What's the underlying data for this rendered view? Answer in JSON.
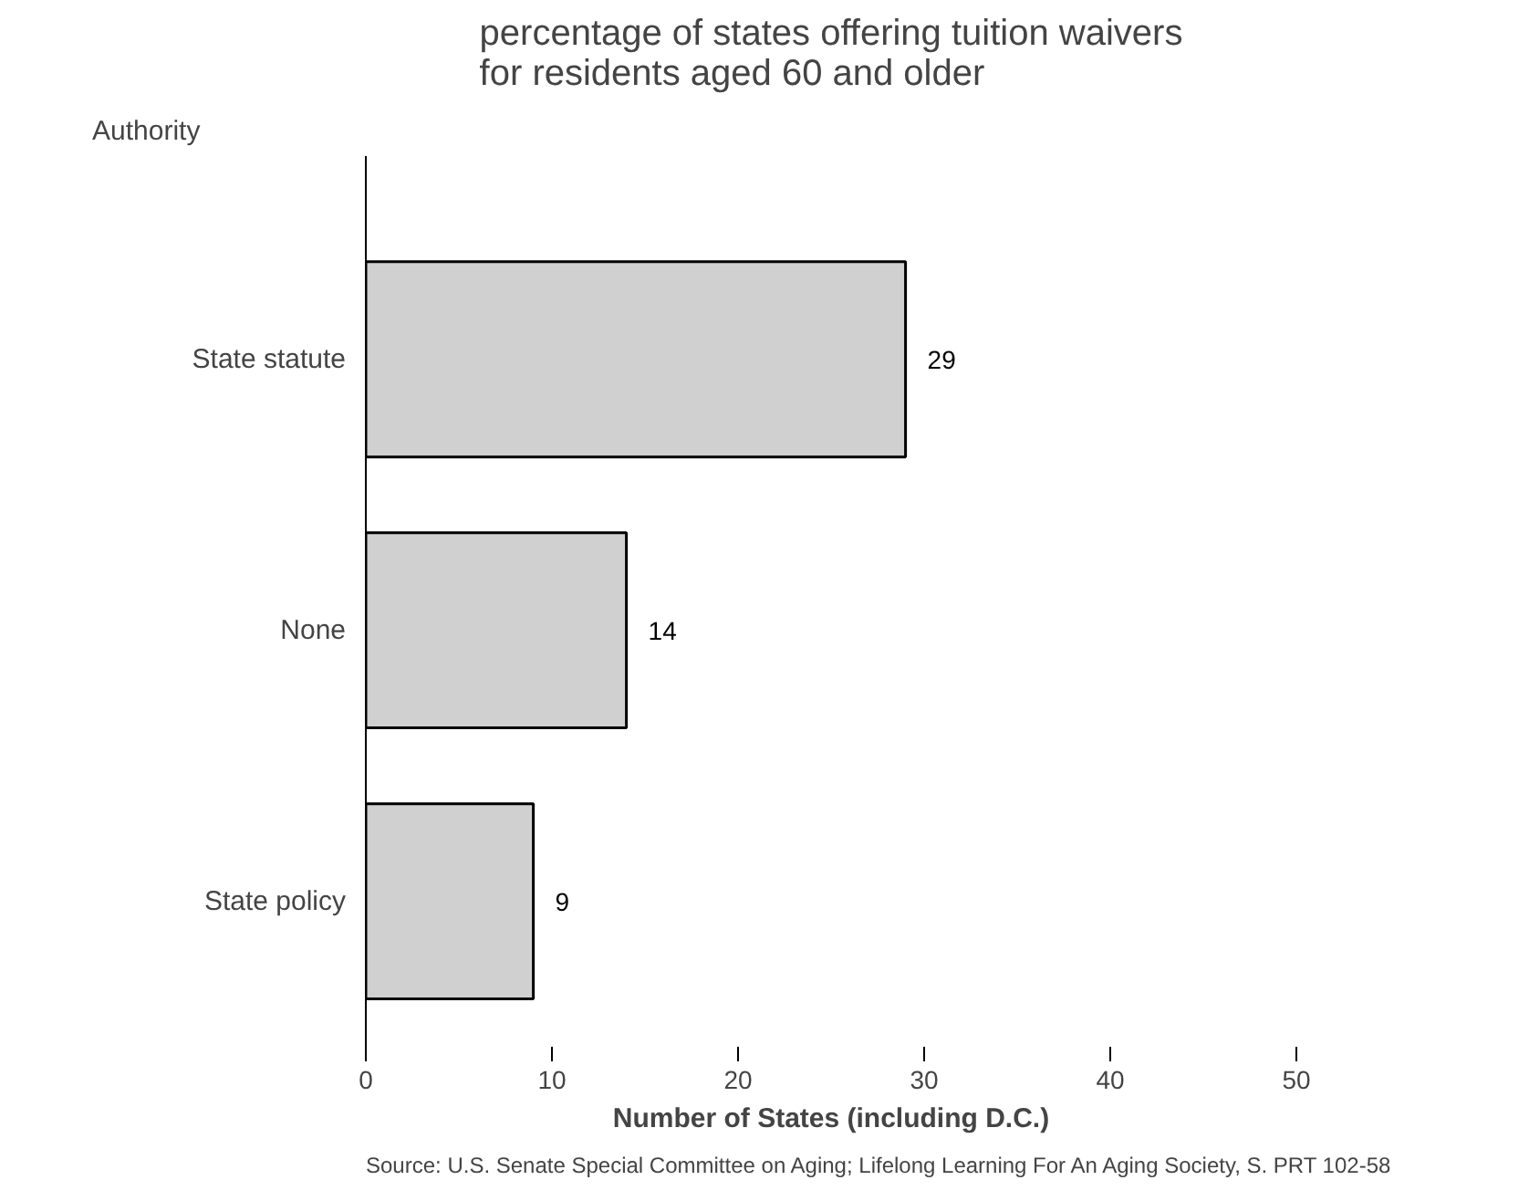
{
  "chart_data": {
    "type": "bar",
    "orientation": "horizontal",
    "title": "percentage of states offering tuition waivers\nfor residents aged 60 and older",
    "ylabel": "Authority",
    "xlabel": "Number of States (including D.C.)",
    "categories": [
      "State statute",
      "None",
      "State policy"
    ],
    "values": [
      29,
      14,
      9
    ],
    "color": "#d0d0d0",
    "data_labels": true,
    "xlim": [
      0,
      50
    ],
    "xticks": [
      0,
      10,
      20,
      30,
      40,
      50
    ],
    "grid": false,
    "annotations": [
      "Source: U.S. Senate Special Committee on Aging; Lifelong Learning For An Aging Society, S. PRT 102-58"
    ]
  }
}
